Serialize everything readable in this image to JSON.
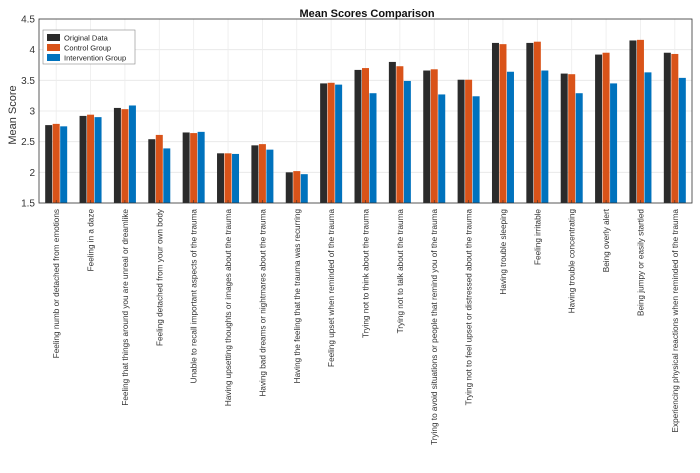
{
  "chart_data": {
    "type": "bar",
    "title": "Mean Scores Comparison",
    "xlabel": "",
    "ylabel": "Mean Score",
    "ylim": [
      1.5,
      4.5
    ],
    "yticks": [
      "1.5",
      "2",
      "2.5",
      "3",
      "3.5",
      "4",
      "4.5"
    ],
    "grid": true,
    "legend_position": "top-left",
    "categories": [
      "Feeling numb or detached from emotions",
      "Feeling in a daze",
      "Feeling that things around you are unreal or dreamlike",
      "Feeling detached from your own body",
      "Unable to recall important aspects of the trauma",
      "Having upsetting thoughts or images about the trauma",
      "Having bad dreams or nightmares about the trauma",
      "Having the feeling that the trauma was recurring",
      "Feeling upset when reminded of the trauma",
      "Trying not to think about the trauma",
      "Trying not to talk about the trauma",
      "Trying to avoid situations or people that remind you of the trauma",
      "Trying not to feel upset or distressed about the trauma",
      "Having trouble sleeping",
      "Feeling irritable",
      "Having trouble concentrating",
      "Being overly alert",
      "Being jumpy or easily startled",
      "Experiencing physical reactions when reminded of the trauma"
    ],
    "series": [
      {
        "name": "Original Data",
        "color": "#2b2b2b",
        "values": [
          2.77,
          2.92,
          3.05,
          2.54,
          2.65,
          2.31,
          2.44,
          2.0,
          3.45,
          3.67,
          3.8,
          3.66,
          3.51,
          4.11,
          4.11,
          3.61,
          3.92,
          4.15,
          3.95
        ]
      },
      {
        "name": "Control Group",
        "color": "#d95319",
        "values": [
          2.79,
          2.94,
          3.03,
          2.61,
          2.64,
          2.31,
          2.46,
          2.02,
          3.46,
          3.7,
          3.73,
          3.68,
          3.51,
          4.09,
          4.13,
          3.6,
          3.95,
          4.16,
          3.93
        ]
      },
      {
        "name": "Intervention Group",
        "color": "#0072bd",
        "values": [
          2.75,
          2.9,
          3.09,
          2.39,
          2.66,
          2.3,
          2.37,
          1.97,
          3.43,
          3.29,
          3.49,
          3.27,
          3.24,
          3.64,
          3.66,
          3.29,
          3.45,
          3.63,
          3.54
        ]
      }
    ]
  }
}
